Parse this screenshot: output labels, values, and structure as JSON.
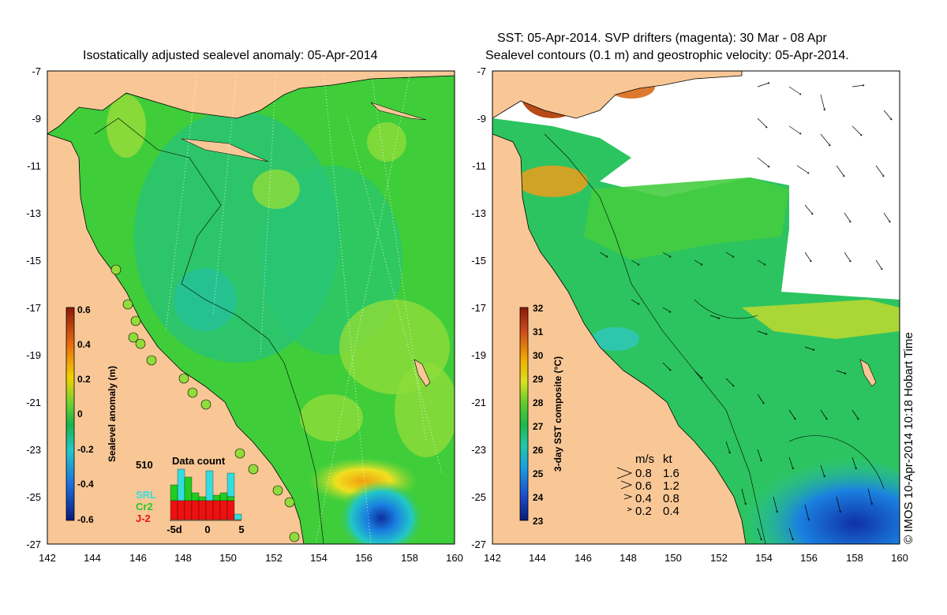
{
  "left_map": {
    "title": "Isostatically adjusted sealevel anomaly: 05-Apr-2014",
    "y_ticks": [
      "-7",
      "-9",
      "-11",
      "-13",
      "-15",
      "-17",
      "-19",
      "-21",
      "-23",
      "-25",
      "-27"
    ],
    "x_ticks": [
      "142",
      "144",
      "146",
      "148",
      "150",
      "152",
      "154",
      "156",
      "158",
      "160"
    ],
    "colorbar": {
      "label": "Sealevel anomaly (m)",
      "ticks": [
        "0.6",
        "0.4",
        "0.2",
        "0",
        "-0.2",
        "-0.4",
        "-0.6"
      ]
    },
    "histogram": {
      "title": "Data count",
      "max_label": "510",
      "x_ticks": [
        "-5d",
        "0",
        "5"
      ],
      "legend": [
        {
          "label": "SRL",
          "color": "#33dddd"
        },
        {
          "label": "Cr2",
          "color": "#22cc22"
        },
        {
          "label": "J-2",
          "color": "#ee1111"
        }
      ]
    }
  },
  "right_map": {
    "title_line1": "SST: 05-Apr-2014. SVP drifters (magenta): 30 Mar - 08 Apr",
    "title_line2": "Sealevel contours (0.1 m) and geostrophic velocity: 05-Apr-2014.",
    "y_ticks": [
      "-7",
      "-9",
      "-11",
      "-13",
      "-15",
      "-17",
      "-19",
      "-21",
      "-23",
      "-25",
      "-27"
    ],
    "x_ticks": [
      "142",
      "144",
      "146",
      "148",
      "150",
      "152",
      "154",
      "156",
      "158",
      "160"
    ],
    "colorbar": {
      "label": "3-day SST composite (°C)",
      "ticks": [
        "32",
        "31",
        "30",
        "29",
        "28",
        "27",
        "26",
        "25",
        "24",
        "23"
      ]
    },
    "velocity_legend": {
      "header_ms": "m/s",
      "header_kt": "kt",
      "rows": [
        {
          "ms": "0.8",
          "kt": "1.6"
        },
        {
          "ms": "0.6",
          "kt": "1.2"
        },
        {
          "ms": "0.4",
          "kt": "0.8"
        },
        {
          "ms": "0.2",
          "kt": "0.4"
        }
      ]
    }
  },
  "credit": "© IMOS 10-Apr-2014 10:18 Hobart Time",
  "colors": {
    "land": "#f9c796",
    "sea_green": "#3fcd3a",
    "sea_light": "#8fdc3a",
    "sea_teal": "#22c08a",
    "ocean_white": "#ffffff"
  }
}
